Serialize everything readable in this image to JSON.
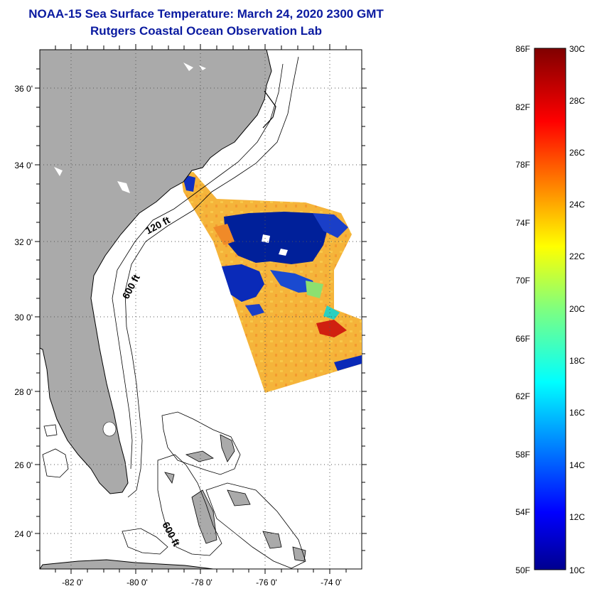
{
  "header": {
    "title": "NOAA-15 Sea Surface Temperature:  March 24, 2020 2300 GMT",
    "subtitle": "Rutgers Coastal Ocean Observation Lab"
  },
  "map": {
    "lon_range": [
      -83,
      -73
    ],
    "lat_range": [
      23,
      37
    ],
    "x_ticks": [
      "-82 0'",
      "-80 0'",
      "-78 0'",
      "-76 0'",
      "-74 0'"
    ],
    "y_ticks": [
      "36 0'",
      "34 0'",
      "32 0'",
      "30 0'",
      "28 0'",
      "26 0'",
      "24 0'"
    ],
    "contour_labels": [
      "120 ft",
      "600 ft",
      "600 ft"
    ],
    "colors": {
      "land": "#aaaaaa",
      "coast": "#000000",
      "grid": "#555555"
    }
  },
  "colorbar": {
    "fahrenheit_labels": [
      "86F",
      "82F",
      "78F",
      "74F",
      "70F",
      "66F",
      "62F",
      "58F",
      "54F",
      "50F"
    ],
    "celsius_labels": [
      "30C",
      "28C",
      "26C",
      "24C",
      "22C",
      "20C",
      "18C",
      "16C",
      "14C",
      "12C",
      "10C"
    ],
    "range_c": [
      10,
      30
    ]
  }
}
